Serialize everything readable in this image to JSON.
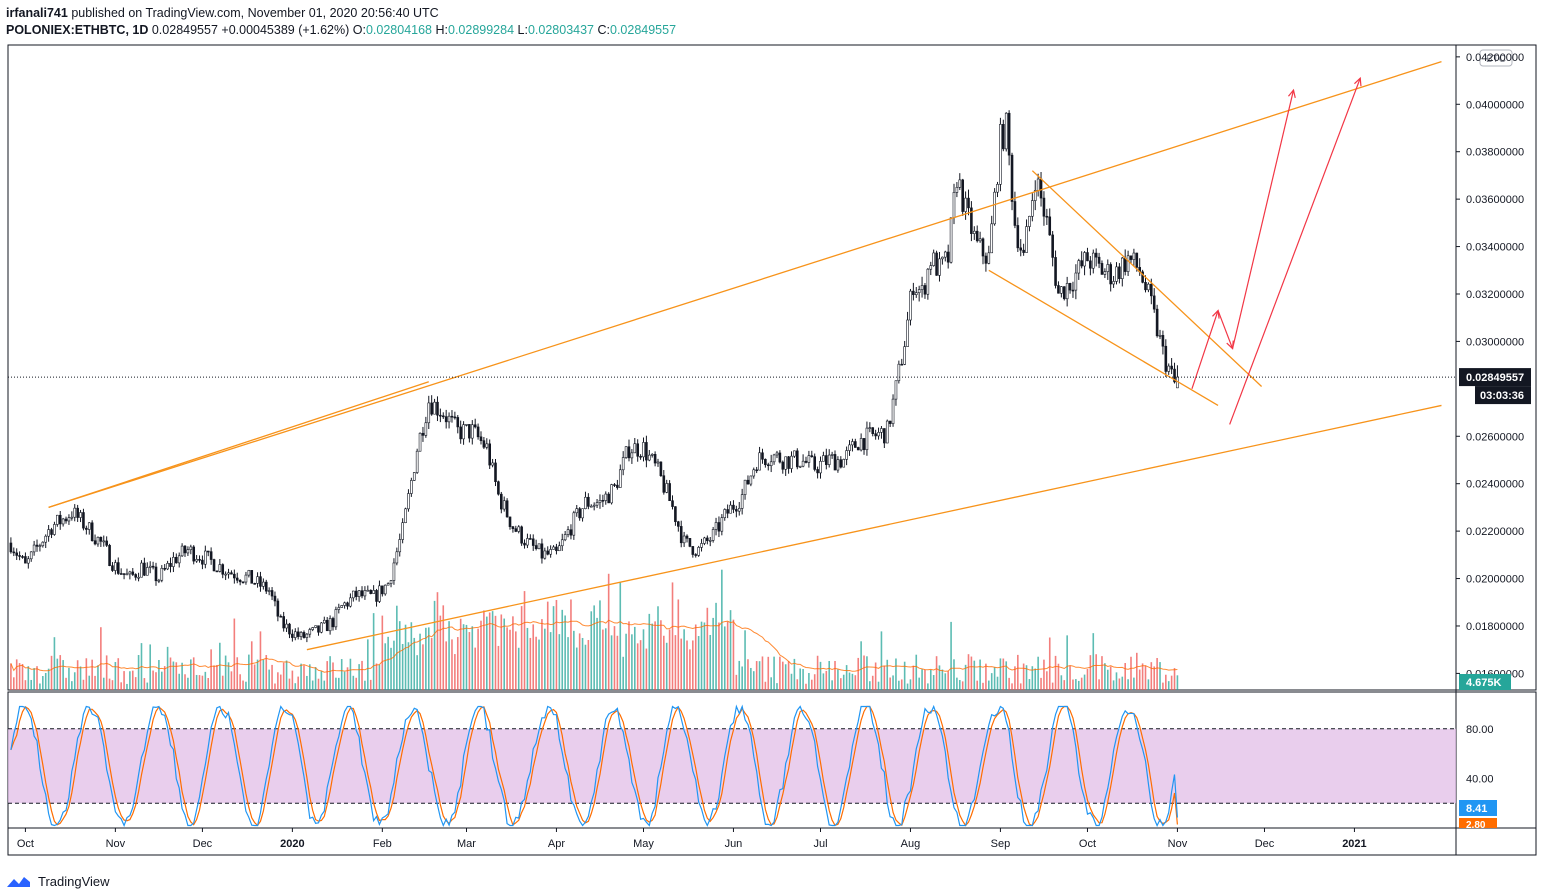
{
  "header": {
    "author": "irfanali741",
    "published_text": "published on TradingView.com, November 01, 2020 20:56:40 UTC",
    "symbol": "POLONIEX:ETHBTC, 1D",
    "last": "0.02849557",
    "change": "+0.00045389 (+1.62%)",
    "o_label": "O:",
    "o": "0.02804168",
    "h_label": "H:",
    "h": "0.02899284",
    "l_label": "L:",
    "l": "0.02803437",
    "c_label": "C:",
    "c": "0.02849557"
  },
  "price_axis": {
    "currency": "BTC",
    "ticks": [
      "0.04200000",
      "0.04000000",
      "0.03800000",
      "0.03600000",
      "0.03400000",
      "0.03200000",
      "0.03000000",
      "0.02600000",
      "0.02400000",
      "0.02200000",
      "0.02000000",
      "0.01800000",
      "0.01600000"
    ],
    "last_price_label": "0.02849557",
    "countdown": "03:03:36",
    "volume_label": "4.675K"
  },
  "oscillator_axis": {
    "ticks": [
      "80.00",
      "40.00"
    ],
    "k_value": "8.41",
    "d_value": "2.80"
  },
  "time_axis": [
    "Oct",
    "Nov",
    "Dec",
    "2020",
    "Feb",
    "Mar",
    "Apr",
    "May",
    "Jun",
    "Jul",
    "Aug",
    "Sep",
    "Oct",
    "Nov",
    "Dec",
    "2021"
  ],
  "footer": {
    "brand": "TradingView"
  },
  "colors": {
    "up": "#26a69a",
    "down": "#ef5350",
    "candle": "#131722",
    "trendline": "#f7931a",
    "arrow": "#f23645",
    "stoch_k": "#2196f3",
    "stoch_d": "#ff6d00",
    "stoch_band": "#e1bee7"
  },
  "chart_data": {
    "type": "candlestick",
    "symbol": "POLONIEX:ETHBTC",
    "interval": "1D",
    "ylim": [
      0.0153,
      0.0425
    ],
    "price_anchors": [
      [
        "2019-09-26",
        0.0215
      ],
      [
        "2019-10-01",
        0.0205
      ],
      [
        "2019-10-05",
        0.0213
      ],
      [
        "2019-10-10",
        0.0222
      ],
      [
        "2019-10-14",
        0.0225
      ],
      [
        "2019-10-17",
        0.0228
      ],
      [
        "2019-10-22",
        0.0222
      ],
      [
        "2019-10-27",
        0.0215
      ],
      [
        "2019-11-01",
        0.0205
      ],
      [
        "2019-11-06",
        0.02
      ],
      [
        "2019-11-10",
        0.0205
      ],
      [
        "2019-11-16",
        0.02
      ],
      [
        "2019-11-21",
        0.0208
      ],
      [
        "2019-11-26",
        0.0212
      ],
      [
        "2019-12-03",
        0.0208
      ],
      [
        "2019-12-10",
        0.0203
      ],
      [
        "2019-12-17",
        0.02
      ],
      [
        "2019-12-24",
        0.0195
      ],
      [
        "2019-12-28",
        0.0181
      ],
      [
        "2020-01-04",
        0.0175
      ],
      [
        "2020-01-10",
        0.0178
      ],
      [
        "2020-01-15",
        0.0182
      ],
      [
        "2020-01-18",
        0.0188
      ],
      [
        "2020-01-23",
        0.0193
      ],
      [
        "2020-01-29",
        0.0192
      ],
      [
        "2020-02-03",
        0.0198
      ],
      [
        "2020-02-08",
        0.022
      ],
      [
        "2020-02-13",
        0.0255
      ],
      [
        "2020-02-17",
        0.0275
      ],
      [
        "2020-02-22",
        0.027
      ],
      [
        "2020-02-27",
        0.0262
      ],
      [
        "2020-03-03",
        0.0262
      ],
      [
        "2020-03-08",
        0.0255
      ],
      [
        "2020-03-12",
        0.0235
      ],
      [
        "2020-03-17",
        0.0222
      ],
      [
        "2020-03-22",
        0.0215
      ],
      [
        "2020-03-27",
        0.021
      ],
      [
        "2020-04-01",
        0.021
      ],
      [
        "2020-04-06",
        0.0222
      ],
      [
        "2020-04-11",
        0.0232
      ],
      [
        "2020-04-16",
        0.0232
      ],
      [
        "2020-04-21",
        0.0238
      ],
      [
        "2020-04-26",
        0.0255
      ],
      [
        "2020-05-01",
        0.0255
      ],
      [
        "2020-05-06",
        0.0245
      ],
      [
        "2020-05-11",
        0.023
      ],
      [
        "2020-05-15",
        0.0215
      ],
      [
        "2020-05-20",
        0.0212
      ],
      [
        "2020-05-25",
        0.0218
      ],
      [
        "2020-05-30",
        0.0228
      ],
      [
        "2020-06-04",
        0.0235
      ],
      [
        "2020-06-09",
        0.025
      ],
      [
        "2020-06-14",
        0.0252
      ],
      [
        "2020-06-19",
        0.025
      ],
      [
        "2020-06-24",
        0.025
      ],
      [
        "2020-06-29",
        0.0247
      ],
      [
        "2020-07-04",
        0.025
      ],
      [
        "2020-07-09",
        0.025
      ],
      [
        "2020-07-14",
        0.0258
      ],
      [
        "2020-07-19",
        0.026
      ],
      [
        "2020-07-24",
        0.0262
      ],
      [
        "2020-07-27",
        0.028
      ],
      [
        "2020-07-30",
        0.03
      ],
      [
        "2020-08-02",
        0.0325
      ],
      [
        "2020-08-05",
        0.032
      ],
      [
        "2020-08-08",
        0.0335
      ],
      [
        "2020-08-11",
        0.033
      ],
      [
        "2020-08-14",
        0.0335
      ],
      [
        "2020-08-17",
        0.037
      ],
      [
        "2020-08-20",
        0.0355
      ],
      [
        "2020-08-24",
        0.034
      ],
      [
        "2020-08-28",
        0.0335
      ],
      [
        "2020-09-01",
        0.0385
      ],
      [
        "2020-09-03",
        0.039
      ],
      [
        "2020-09-06",
        0.035
      ],
      [
        "2020-09-09",
        0.0335
      ],
      [
        "2020-09-13",
        0.037
      ],
      [
        "2020-09-17",
        0.035
      ],
      [
        "2020-09-21",
        0.032
      ],
      [
        "2020-09-25",
        0.0325
      ],
      [
        "2020-10-01",
        0.0335
      ],
      [
        "2020-10-06",
        0.033
      ],
      [
        "2020-10-10",
        0.0328
      ],
      [
        "2020-10-15",
        0.0335
      ],
      [
        "2020-10-19",
        0.033
      ],
      [
        "2020-10-23",
        0.0315
      ],
      [
        "2020-10-27",
        0.0295
      ],
      [
        "2020-10-31",
        0.0282
      ],
      [
        "2020-11-01",
        0.0285
      ]
    ],
    "stoch_rsi": {
      "k_last": 8.41,
      "d_last": 2.8,
      "upper_band": 80,
      "lower_band": 20
    }
  },
  "drawings": {
    "lines": [
      {
        "kind": "channel-upper",
        "p1": [
          "2019-10-09",
          0.023
        ],
        "p2": [
          "2021-01-31",
          0.0418
        ]
      },
      {
        "kind": "channel-lower",
        "p1": [
          "2020-01-06",
          0.017
        ],
        "p2": [
          "2021-01-31",
          0.0273
        ]
      },
      {
        "kind": "channel-upper-touch",
        "p1": [
          "2019-10-09",
          0.023
        ],
        "p2": [
          "2020-02-17",
          0.0283
        ]
      },
      {
        "kind": "wedge-upper",
        "p1": [
          "2020-09-12",
          0.0372
        ],
        "p2": [
          "2020-11-30",
          0.0281
        ]
      },
      {
        "kind": "wedge-lower",
        "p1": [
          "2020-08-28",
          0.033
        ],
        "p2": [
          "2020-11-15",
          0.0273
        ]
      }
    ],
    "arrows": [
      {
        "from": [
          "2020-11-06",
          0.028
        ],
        "to": [
          "2020-11-15",
          0.0313
        ]
      },
      {
        "from": [
          "2020-11-15",
          0.0313
        ],
        "to": [
          "2020-11-20",
          0.0297
        ]
      },
      {
        "from": [
          "2020-11-20",
          0.0297
        ],
        "to": [
          "2020-12-11",
          0.0406
        ]
      },
      {
        "from": [
          "2020-11-19",
          0.0265
        ],
        "to": [
          "2021-01-03",
          0.0411
        ]
      }
    ]
  }
}
